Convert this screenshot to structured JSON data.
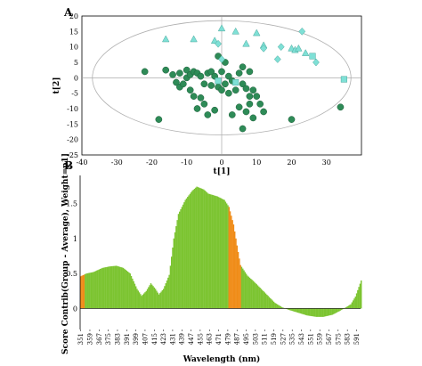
{
  "chart_data": [
    {
      "panel": "A",
      "type": "scatter",
      "xlabel": "t[1]",
      "ylabel": "t[2]",
      "xlim": [
        -40,
        40
      ],
      "ylim": [
        -25,
        20
      ],
      "xticks": [
        -40,
        -30,
        -20,
        -10,
        0,
        10,
        20,
        30
      ],
      "yticks": [
        20,
        15,
        10,
        5,
        0,
        -5,
        -10,
        -15,
        -20,
        -25
      ],
      "ellipse": {
        "center": [
          0,
          0
        ],
        "rx": 37,
        "ry": 18.5,
        "color": "#b0b0b0"
      },
      "series": [
        {
          "marker": "circle",
          "color": "#2e8b57",
          "points": [
            [
              -22,
              2
            ],
            [
              -18,
              -13.5
            ],
            [
              -16,
              2.5
            ],
            [
              -14,
              1
            ],
            [
              -13,
              -1.5
            ],
            [
              -12,
              1.5
            ],
            [
              -12,
              -3
            ],
            [
              -11,
              -2
            ],
            [
              -10,
              0
            ],
            [
              -10,
              2.5
            ],
            [
              -9,
              1
            ],
            [
              -9,
              -4
            ],
            [
              -8,
              2
            ],
            [
              -8,
              -6
            ],
            [
              -7,
              1.5
            ],
            [
              -7,
              -10
            ],
            [
              -6,
              0.5
            ],
            [
              -6,
              -6.5
            ],
            [
              -5,
              -2
            ],
            [
              -5,
              -8.5
            ],
            [
              -4,
              1.5
            ],
            [
              -4,
              -12
            ],
            [
              -3,
              2
            ],
            [
              -3,
              -2.5
            ],
            [
              -2,
              0.5
            ],
            [
              -2,
              -10.5
            ],
            [
              -1,
              -3
            ],
            [
              -1,
              7
            ],
            [
              0,
              -4
            ],
            [
              0,
              2
            ],
            [
              1,
              5
            ],
            [
              1,
              -2
            ],
            [
              2,
              0.5
            ],
            [
              2,
              -5
            ],
            [
              3,
              -1
            ],
            [
              3,
              -12
            ],
            [
              4,
              -4
            ],
            [
              5,
              1.5
            ],
            [
              5,
              -9.5
            ],
            [
              6,
              -2
            ],
            [
              6,
              -16.5
            ],
            [
              7,
              -3.5
            ],
            [
              7,
              -11
            ],
            [
              8,
              -8.5
            ],
            [
              8,
              2
            ],
            [
              9,
              -4
            ],
            [
              9,
              -13
            ],
            [
              10,
              -6
            ],
            [
              11,
              -8.5
            ],
            [
              12,
              -11
            ],
            [
              20,
              -13.5
            ],
            [
              34,
              -9.5
            ],
            [
              8,
              -6
            ],
            [
              6,
              3.5
            ]
          ]
        },
        {
          "marker": "triangle",
          "color": "#7fe0d6",
          "points": [
            [
              -16,
              12.5
            ],
            [
              -8,
              12.5
            ],
            [
              -2,
              12
            ],
            [
              0,
              16
            ],
            [
              4,
              15
            ],
            [
              7,
              11
            ],
            [
              10,
              14.5
            ],
            [
              12,
              10.5
            ],
            [
              20,
              9.5
            ],
            [
              21,
              9
            ],
            [
              22,
              9.5
            ],
            [
              24,
              8
            ]
          ]
        },
        {
          "marker": "diamond",
          "color": "#7fe0d6",
          "points": [
            [
              -1,
              11
            ],
            [
              0,
              6
            ],
            [
              12,
              9.5
            ],
            [
              16,
              6
            ],
            [
              17,
              10
            ],
            [
              23,
              15
            ],
            [
              27,
              5
            ]
          ]
        },
        {
          "marker": "square",
          "color": "#7fe0d6",
          "points": [
            [
              -1,
              -1
            ],
            [
              4,
              -1.5
            ],
            [
              26,
              7
            ],
            [
              35,
              -0.5
            ]
          ]
        }
      ]
    },
    {
      "panel": "B",
      "type": "bar",
      "xlabel": "Wavelength (nm)",
      "ylabel": "Score Contrib(Group - Average), Weight=p1]",
      "ylim": [
        -0.3,
        1.9
      ],
      "yticks": [
        1.5,
        1,
        0.5,
        0
      ],
      "x_tick_labels": [
        "351",
        "359",
        "367",
        "375",
        "383",
        "391",
        "399",
        "407",
        "415",
        "423",
        "431",
        "439",
        "447",
        "455",
        "463",
        "471",
        "479",
        "487",
        "495",
        "503",
        "511",
        "519",
        "527",
        "535",
        "543",
        "551",
        "559",
        "567",
        "575",
        "583",
        "591"
      ],
      "wavelength_range": [
        351,
        595
      ],
      "series_color": "#7cc431",
      "highlight_color": "#f08c18",
      "highlight_ranges": [
        [
          351,
          354
        ],
        [
          480,
          490
        ]
      ],
      "profile": [
        [
          351,
          0.46
        ],
        [
          356,
          0.5
        ],
        [
          362,
          0.52
        ],
        [
          370,
          0.58
        ],
        [
          376,
          0.6
        ],
        [
          382,
          0.61
        ],
        [
          388,
          0.58
        ],
        [
          394,
          0.5
        ],
        [
          400,
          0.28
        ],
        [
          404,
          0.18
        ],
        [
          408,
          0.25
        ],
        [
          412,
          0.36
        ],
        [
          416,
          0.28
        ],
        [
          419,
          0.2
        ],
        [
          423,
          0.28
        ],
        [
          428,
          0.48
        ],
        [
          432,
          1.0
        ],
        [
          436,
          1.35
        ],
        [
          442,
          1.55
        ],
        [
          448,
          1.68
        ],
        [
          452,
          1.74
        ],
        [
          458,
          1.7
        ],
        [
          462,
          1.64
        ],
        [
          470,
          1.6
        ],
        [
          476,
          1.55
        ],
        [
          480,
          1.45
        ],
        [
          484,
          1.2
        ],
        [
          487,
          0.9
        ],
        [
          490,
          0.62
        ],
        [
          496,
          0.47
        ],
        [
          502,
          0.38
        ],
        [
          508,
          0.28
        ],
        [
          514,
          0.18
        ],
        [
          520,
          0.08
        ],
        [
          526,
          0.02
        ],
        [
          532,
          -0.02
        ],
        [
          540,
          -0.06
        ],
        [
          548,
          -0.1
        ],
        [
          556,
          -0.12
        ],
        [
          562,
          -0.12
        ],
        [
          570,
          -0.09
        ],
        [
          577,
          -0.03
        ],
        [
          582,
          0.02
        ],
        [
          586,
          0.06
        ],
        [
          590,
          0.17
        ],
        [
          595,
          0.4
        ]
      ]
    }
  ]
}
